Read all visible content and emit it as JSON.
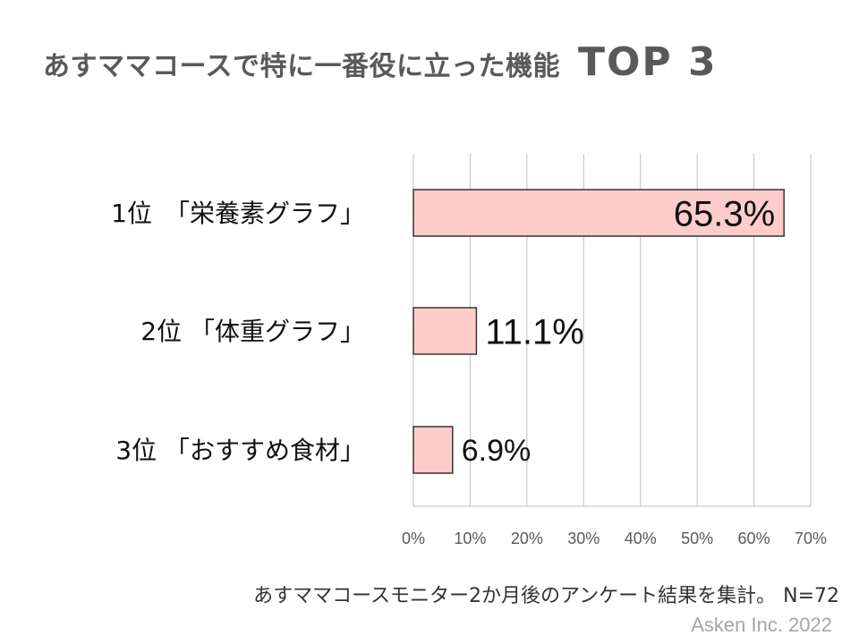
{
  "page": {
    "title": "あすママコースで特に一番役に立った機能",
    "title_badge": "TOP 3",
    "footnote": "あすママコースモニター2か月後のアンケート結果を集計。",
    "sample_size": "N=72",
    "credit": "Asken Inc. 2022"
  },
  "colors": {
    "bar_fill": "#ffcccc",
    "bar_stroke": "#333333",
    "grid": "#bfbfbf",
    "title": "#595959",
    "tick": "#595959",
    "credit": "#a6a6a6"
  },
  "chart_data": {
    "type": "bar",
    "orientation": "horizontal",
    "categories": [
      "1位　「栄養素グラフ」",
      "2位 「体重グラフ」",
      "3位 「おすすめ食材」"
    ],
    "values": [
      65.3,
      11.1,
      6.9
    ],
    "data_labels": [
      "65.3%",
      "11.1%",
      "6.9%"
    ],
    "xlim": [
      0,
      70
    ],
    "xticks": [
      0,
      10,
      20,
      30,
      40,
      50,
      60,
      70
    ],
    "xtick_labels": [
      "0%",
      "10%",
      "20%",
      "30%",
      "40%",
      "50%",
      "60%",
      "70%"
    ],
    "grid": "vertical",
    "legend": "none"
  }
}
